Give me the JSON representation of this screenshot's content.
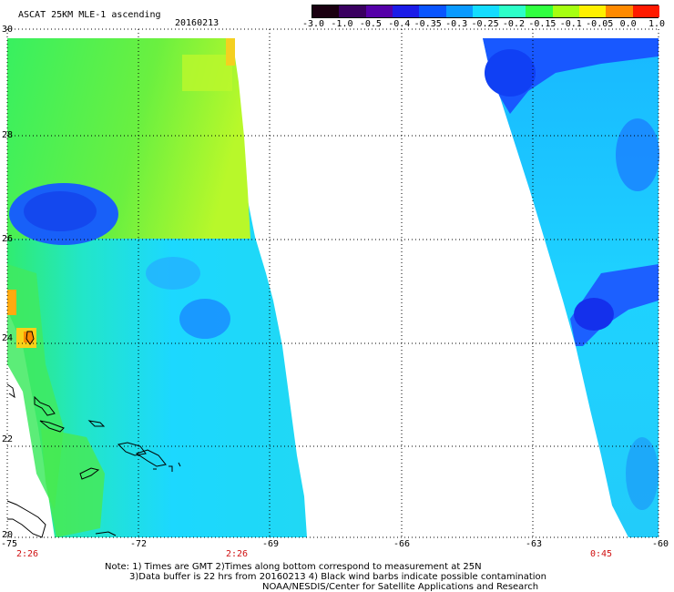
{
  "header": {
    "product": "ASCAT 25KM MLE-1 ascending",
    "date": "20160213"
  },
  "colorbar": {
    "labels": [
      "-3.0",
      "-1.0",
      "-0.5",
      "-0.4",
      "-0.35",
      "-0.3",
      "-0.25",
      "-0.2",
      "-0.15",
      "-0.1",
      "-0.05",
      "0.0",
      "1.0"
    ],
    "colors": [
      "#1a0010",
      "#3a0060",
      "#5500a8",
      "#1c1ce8",
      "#0a55ff",
      "#0a9aff",
      "#14dcff",
      "#2cffc8",
      "#30ff40",
      "#a6ff10",
      "#fff000",
      "#ff8a00",
      "#ff1a00"
    ]
  },
  "map": {
    "lat_labels": [
      "30",
      "28",
      "26",
      "24",
      "22",
      "20"
    ],
    "lon_labels": [
      "-75",
      "-72",
      "-69",
      "-66",
      "-63",
      "-60"
    ],
    "pass_times": [
      "2:26",
      "2:26",
      "0:45"
    ]
  },
  "notes": {
    "line1": "Note: 1) Times are GMT 2)Times along bottom correspond to measurement at 25N",
    "line2": "3)Data buffer is 22 hrs from 20160213 4) Black wind barbs indicate possible contamination",
    "line3": "NOAA/NESDIS/Center for Satellite Applications and Research"
  }
}
